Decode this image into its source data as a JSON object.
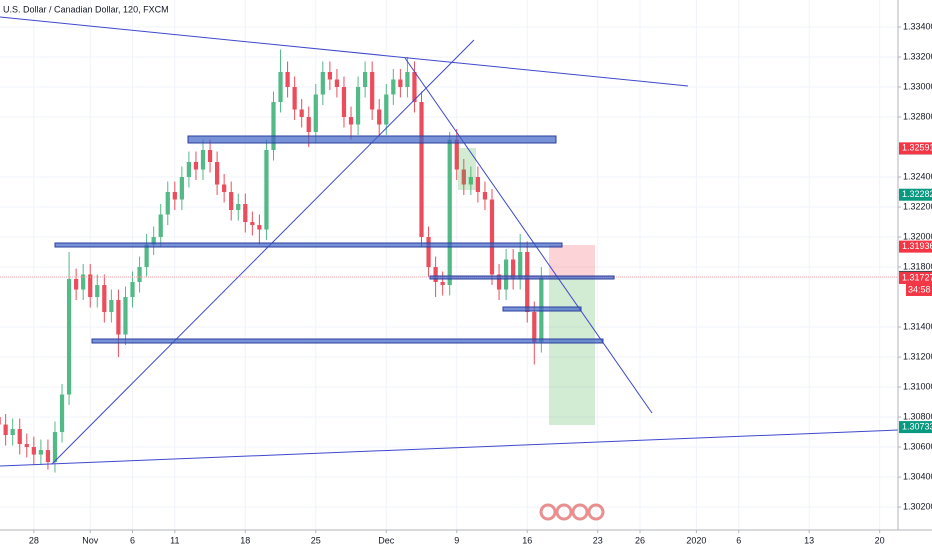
{
  "chart_data": {
    "type": "candlestick",
    "title": "U.S. Dollar / Canadian Dollar, 120, FXCM",
    "x": [
      -2.5,
      -2.0,
      -1.5,
      -1.0,
      -0.5,
      0.0,
      0.5,
      1.0,
      1.5,
      2.0,
      2.5,
      3.0,
      3.5,
      4.0,
      4.5,
      5.0,
      5.5,
      6.0,
      6.5,
      7.0,
      7.5,
      8.0,
      8.5,
      9.0,
      9.5,
      10.0,
      10.5,
      11.0,
      11.5,
      12.0,
      12.5,
      13.0,
      13.5,
      14.0,
      14.5,
      15.0,
      15.5,
      16.0,
      16.5,
      17.0,
      17.5,
      18.0,
      18.5,
      19.0,
      19.5,
      20.0,
      20.5,
      21.0,
      21.5,
      22.0,
      22.5,
      23.0,
      23.5,
      24.0,
      24.5,
      25.0,
      25.5,
      26.0,
      26.5,
      27.0,
      27.5,
      28.0,
      28.5,
      29.0,
      29.5,
      30.0,
      30.5,
      31.0,
      31.5,
      32.0,
      32.5,
      33.0,
      33.5,
      34.0,
      34.5,
      35.0,
      35.5,
      36.0
    ],
    "open": [
      1.308,
      1.3075,
      1.3068,
      1.3072,
      1.3062,
      1.306,
      1.3055,
      1.3058,
      1.305,
      1.307,
      1.3095,
      1.3172,
      1.3165,
      1.3175,
      1.316,
      1.3168,
      1.315,
      1.3158,
      1.3135,
      1.316,
      1.317,
      1.318,
      1.3195,
      1.32,
      1.3215,
      1.323,
      1.3225,
      1.324,
      1.325,
      1.3245,
      1.3258,
      1.325,
      1.3235,
      1.323,
      1.3218,
      1.3222,
      1.321,
      1.3208,
      1.3205,
      1.3258,
      1.329,
      1.331,
      1.33,
      1.3285,
      1.328,
      1.327,
      1.3295,
      1.331,
      1.3305,
      1.33,
      1.328,
      1.3275,
      1.33,
      1.331,
      1.3285,
      1.3275,
      1.3295,
      1.3305,
      1.33,
      1.331,
      1.329,
      1.32,
      1.318,
      1.317,
      1.3168,
      1.3265,
      1.3245,
      1.3235,
      1.324,
      1.323,
      1.3225,
      1.3175,
      1.3165,
      1.3185,
      1.3172,
      1.319,
      1.315,
      1.313
    ],
    "high": [
      1.3087,
      1.3082,
      1.3079,
      1.3079,
      1.3069,
      1.3067,
      1.3065,
      1.3065,
      1.3077,
      1.3102,
      1.319,
      1.3179,
      1.3182,
      1.3182,
      1.3175,
      1.3175,
      1.3165,
      1.3165,
      1.3167,
      1.3177,
      1.3187,
      1.3202,
      1.3207,
      1.3222,
      1.3237,
      1.3237,
      1.3247,
      1.3257,
      1.3257,
      1.3265,
      1.3265,
      1.3257,
      1.3242,
      1.3237,
      1.3229,
      1.3229,
      1.3217,
      1.3215,
      1.3265,
      1.3297,
      1.3325,
      1.3317,
      1.3307,
      1.3292,
      1.3287,
      1.3302,
      1.3317,
      1.3317,
      1.3312,
      1.3307,
      1.3287,
      1.3307,
      1.3317,
      1.3317,
      1.3292,
      1.3302,
      1.3312,
      1.3312,
      1.332,
      1.3317,
      1.3297,
      1.3207,
      1.3187,
      1.3177,
      1.327,
      1.3272,
      1.3252,
      1.3247,
      1.3247,
      1.3237,
      1.3232,
      1.3182,
      1.3192,
      1.3192,
      1.3202,
      1.3197,
      1.3157,
      1.318
    ],
    "low": [
      1.3068,
      1.3061,
      1.3061,
      1.3055,
      1.3053,
      1.3048,
      1.3048,
      1.3045,
      1.3043,
      1.3063,
      1.3088,
      1.3158,
      1.3158,
      1.3153,
      1.3153,
      1.3143,
      1.3143,
      1.312,
      1.3128,
      1.3153,
      1.3163,
      1.3173,
      1.3188,
      1.3193,
      1.3208,
      1.3218,
      1.3218,
      1.3233,
      1.3238,
      1.3238,
      1.3243,
      1.3228,
      1.3223,
      1.3211,
      1.3211,
      1.3203,
      1.3201,
      1.3195,
      1.3198,
      1.3251,
      1.3283,
      1.3293,
      1.3278,
      1.3273,
      1.326,
      1.3263,
      1.3288,
      1.3298,
      1.3293,
      1.3273,
      1.3265,
      1.3268,
      1.3293,
      1.3278,
      1.3268,
      1.3268,
      1.3288,
      1.3293,
      1.3293,
      1.3283,
      1.3193,
      1.3173,
      1.316,
      1.3161,
      1.3161,
      1.3238,
      1.3228,
      1.3228,
      1.3223,
      1.3218,
      1.3168,
      1.3158,
      1.3158,
      1.3165,
      1.3165,
      1.3143,
      1.3115,
      1.3123
    ],
    "close": [
      1.3075,
      1.3068,
      1.3072,
      1.3062,
      1.306,
      1.3055,
      1.3058,
      1.305,
      1.307,
      1.3095,
      1.3172,
      1.3165,
      1.3175,
      1.316,
      1.3168,
      1.315,
      1.3158,
      1.3135,
      1.316,
      1.317,
      1.318,
      1.3195,
      1.32,
      1.3215,
      1.323,
      1.3225,
      1.324,
      1.325,
      1.3245,
      1.3258,
      1.325,
      1.3235,
      1.323,
      1.3218,
      1.3222,
      1.321,
      1.3208,
      1.3205,
      1.3258,
      1.329,
      1.331,
      1.33,
      1.3285,
      1.328,
      1.327,
      1.3295,
      1.331,
      1.3305,
      1.33,
      1.328,
      1.3275,
      1.33,
      1.331,
      1.3285,
      1.3275,
      1.3295,
      1.3305,
      1.33,
      1.331,
      1.329,
      1.32,
      1.318,
      1.317,
      1.3168,
      1.3265,
      1.3245,
      1.3235,
      1.324,
      1.323,
      1.3225,
      1.3175,
      1.3165,
      1.3185,
      1.3172,
      1.319,
      1.315,
      1.313,
      1.3173
    ],
    "up_color": "#53b987",
    "down_color": "#eb4d5c",
    "xlim": [
      -2.4,
      61.3
    ],
    "xticks": [
      {
        "value": 0,
        "label": "28"
      },
      {
        "value": 4,
        "label": "Nov"
      },
      {
        "value": 7,
        "label": "6"
      },
      {
        "value": 10,
        "label": "11"
      },
      {
        "value": 15,
        "label": "18"
      },
      {
        "value": 20,
        "label": "25"
      },
      {
        "value": 25,
        "label": "Dec"
      },
      {
        "value": 30,
        "label": "9"
      },
      {
        "value": 35,
        "label": "16"
      },
      {
        "value": 40,
        "label": "23"
      },
      {
        "value": 43,
        "label": "26"
      },
      {
        "value": 47,
        "label": "2020"
      },
      {
        "value": 50,
        "label": "6"
      },
      {
        "value": 55,
        "label": "13"
      },
      {
        "value": 60,
        "label": "20"
      }
    ],
    "ylim": [
      1.30047,
      1.3358
    ],
    "yticks": [
      {
        "value": 1.334,
        "label": "1.33400"
      },
      {
        "value": 1.332,
        "label": "1.33200"
      },
      {
        "value": 1.33,
        "label": "1.33000"
      },
      {
        "value": 1.328,
        "label": "1.32800"
      },
      {
        "value": 1.324,
        "label": "1.32400"
      },
      {
        "value": 1.322,
        "label": "1.32200"
      },
      {
        "value": 1.32,
        "label": "1.32000"
      },
      {
        "value": 1.318,
        "label": "1.31800"
      },
      {
        "value": 1.314,
        "label": "1.31400"
      },
      {
        "value": 1.312,
        "label": "1.31200"
      },
      {
        "value": 1.31,
        "label": "1.31000"
      },
      {
        "value": 1.308,
        "label": "1.30800"
      },
      {
        "value": 1.306,
        "label": "1.30600"
      },
      {
        "value": 1.304,
        "label": "1.30400"
      },
      {
        "value": 1.302,
        "label": "1.30200"
      }
    ],
    "price_labels": [
      {
        "value": 1.3259,
        "label": "1.32590",
        "color": "#434651"
      },
      {
        "value": 1.32591,
        "label": "1.32591",
        "color": "#f23645"
      },
      {
        "value": 1.32282,
        "label": "1.32282",
        "color": "#089981"
      },
      {
        "value": 1.31936,
        "label": "1.31936",
        "color": "#f23645"
      },
      {
        "value": 1.31734,
        "label": "1.31734",
        "color": "#434651"
      },
      {
        "value": 1.31727,
        "label": "1.31727",
        "color": "#f23645"
      },
      {
        "value": 1.30733,
        "label": "1.30733",
        "color": "#089981"
      }
    ],
    "countdown": "34:58",
    "grid": true
  }
}
